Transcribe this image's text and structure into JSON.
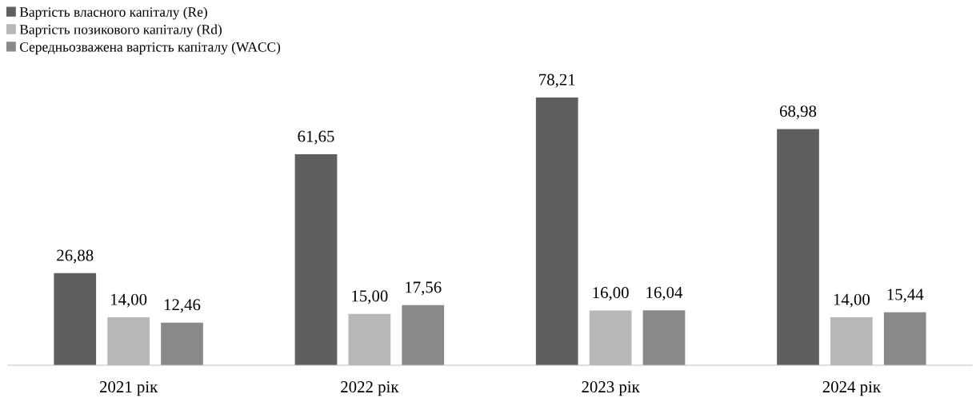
{
  "chart_data": {
    "type": "bar",
    "categories": [
      "2021 рік",
      "2022 рік",
      "2023 рік",
      "2024 рік"
    ],
    "series": [
      {
        "name": "Вартість власного капіталу (Re)",
        "color": "#5f5f5f",
        "values": [
          26.88,
          61.65,
          78.21,
          68.98
        ],
        "value_labels": [
          "26,88",
          "61,65",
          "78,21",
          "68,98"
        ]
      },
      {
        "name": "Вартість позикового капіталу (Rd)",
        "color": "#b7b7b7",
        "values": [
          14.0,
          15.0,
          16.0,
          14.0
        ],
        "value_labels": [
          "14,00",
          "15,00",
          "16,00",
          "14,00"
        ]
      },
      {
        "name": "Середньозважена вартість капіталу (WACC)",
        "color": "#898989",
        "values": [
          12.46,
          17.56,
          16.04,
          15.44
        ],
        "value_labels": [
          "12,46",
          "17,56",
          "16,04",
          "15,44"
        ]
      }
    ],
    "grid": false,
    "legend": "top left",
    "tick_labels": "x"
  }
}
